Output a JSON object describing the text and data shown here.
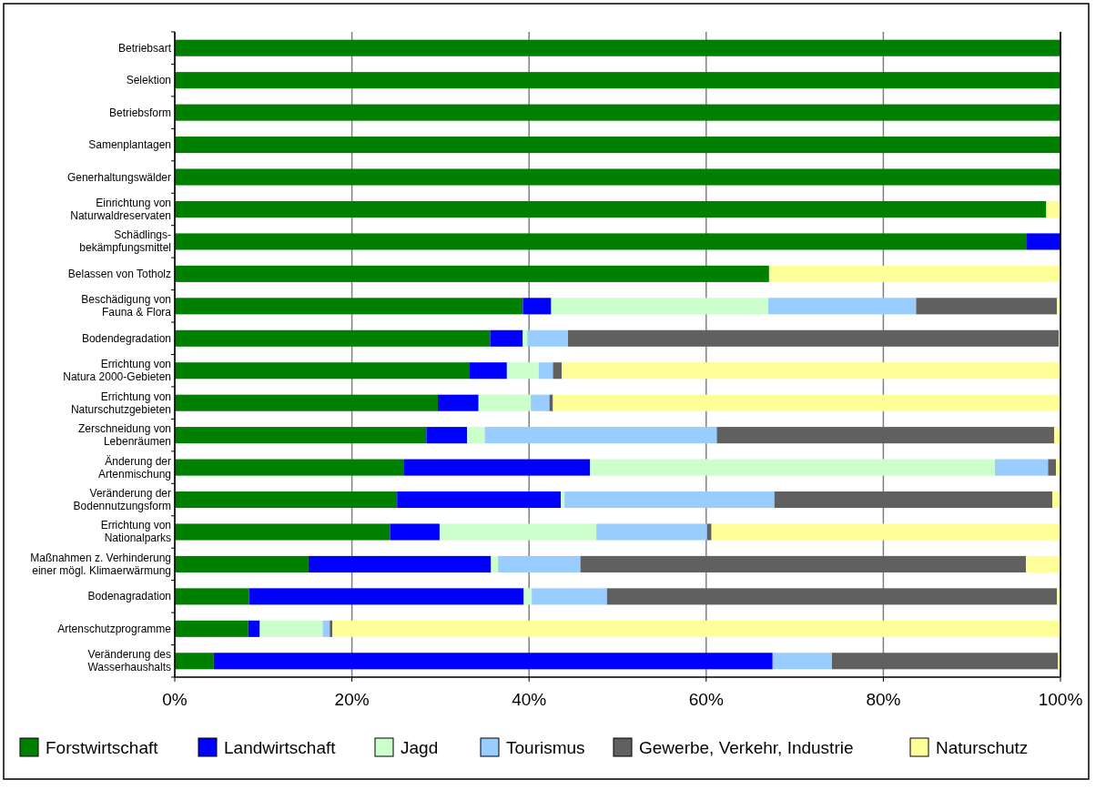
{
  "chart_data": {
    "type": "bar",
    "orientation": "horizontal",
    "stacked": true,
    "grid": "x",
    "legend": "bottom",
    "categories": [
      "Betriebsart",
      "Selektion",
      "Betriebsform",
      "Samenplantagen",
      "Generhaltungswälder",
      "Einrichtung von\nNaturwaldreservaten",
      "Schädlings-\nbekämpfungsmittel",
      "Belassen von Totholz",
      "Beschädigung von\nFauna & Flora",
      "Bodendegradation",
      "Errichtung von\nNatura 2000-Gebieten",
      "Errichtung von\nNaturschutzgebieten",
      "Zerschneidung von\nLebenräumen",
      "Änderung der\nArtenmischung",
      "Veränderung der\nBodennutzungsform",
      "Errichtung von\nNationalparks",
      "Maßnahmen z. Verhinderung\neiner mögl. Klimaerwärmung",
      "Bodenagradation",
      "Artenschutzprogramme",
      "Veränderung des\nWasserhaushalts"
    ],
    "xlim": [
      0,
      100
    ],
    "xticks": [
      {
        "value": 0,
        "label": "0%"
      },
      {
        "value": 20,
        "label": "20%"
      },
      {
        "value": 40,
        "label": "40%"
      },
      {
        "value": 60,
        "label": "60%"
      },
      {
        "value": 80,
        "label": "80%"
      },
      {
        "value": 100,
        "label": "100%"
      }
    ],
    "series": [
      {
        "name": "Forstwirtschaft",
        "color": "#008000",
        "values": [
          100,
          100,
          100,
          100,
          100,
          98.4,
          96.2,
          67.1,
          39.3,
          35.6,
          33.3,
          29.7,
          28.4,
          25.9,
          25.1,
          24.3,
          15.1,
          8.4,
          8.3,
          4.4
        ]
      },
      {
        "name": "Landwirtschaft",
        "color": "#0000ff",
        "values": [
          0,
          0,
          0,
          0,
          0,
          0,
          3.8,
          0,
          3.2,
          3.7,
          4.2,
          4.6,
          4.6,
          21.0,
          18.5,
          5.6,
          20.6,
          31.0,
          1.3,
          63.1
        ]
      },
      {
        "name": "Jagd",
        "color": "#ccffcc",
        "values": [
          0,
          0,
          0,
          0,
          0,
          0,
          0,
          0,
          24.5,
          0.5,
          3.6,
          5.9,
          2.0,
          45.7,
          0.4,
          17.7,
          0.8,
          0.9,
          7.1,
          0
        ]
      },
      {
        "name": "Tourismus",
        "color": "#99ccff",
        "values": [
          0,
          0,
          0,
          0,
          0,
          0,
          0,
          0,
          16.7,
          4.6,
          1.6,
          2.1,
          26.2,
          6.0,
          23.7,
          12.5,
          9.3,
          8.5,
          0.8,
          6.7
        ]
      },
      {
        "name": "Gewerbe, Verkehr, Industrie",
        "color": "#606060",
        "values": [
          0,
          0,
          0,
          0,
          0,
          0,
          0,
          0,
          15.9,
          55.4,
          1.0,
          0.4,
          38.1,
          0.9,
          31.4,
          0.5,
          50.3,
          50.8,
          0.3,
          25.5
        ]
      },
      {
        "name": "Naturschutz",
        "color": "#ffff99",
        "values": [
          0,
          0,
          0,
          0,
          0,
          1.6,
          0,
          32.9,
          0.4,
          0.2,
          56.3,
          57.3,
          0.7,
          0.5,
          0.9,
          39.4,
          3.9,
          0.4,
          82.2,
          0.3
        ]
      }
    ]
  }
}
